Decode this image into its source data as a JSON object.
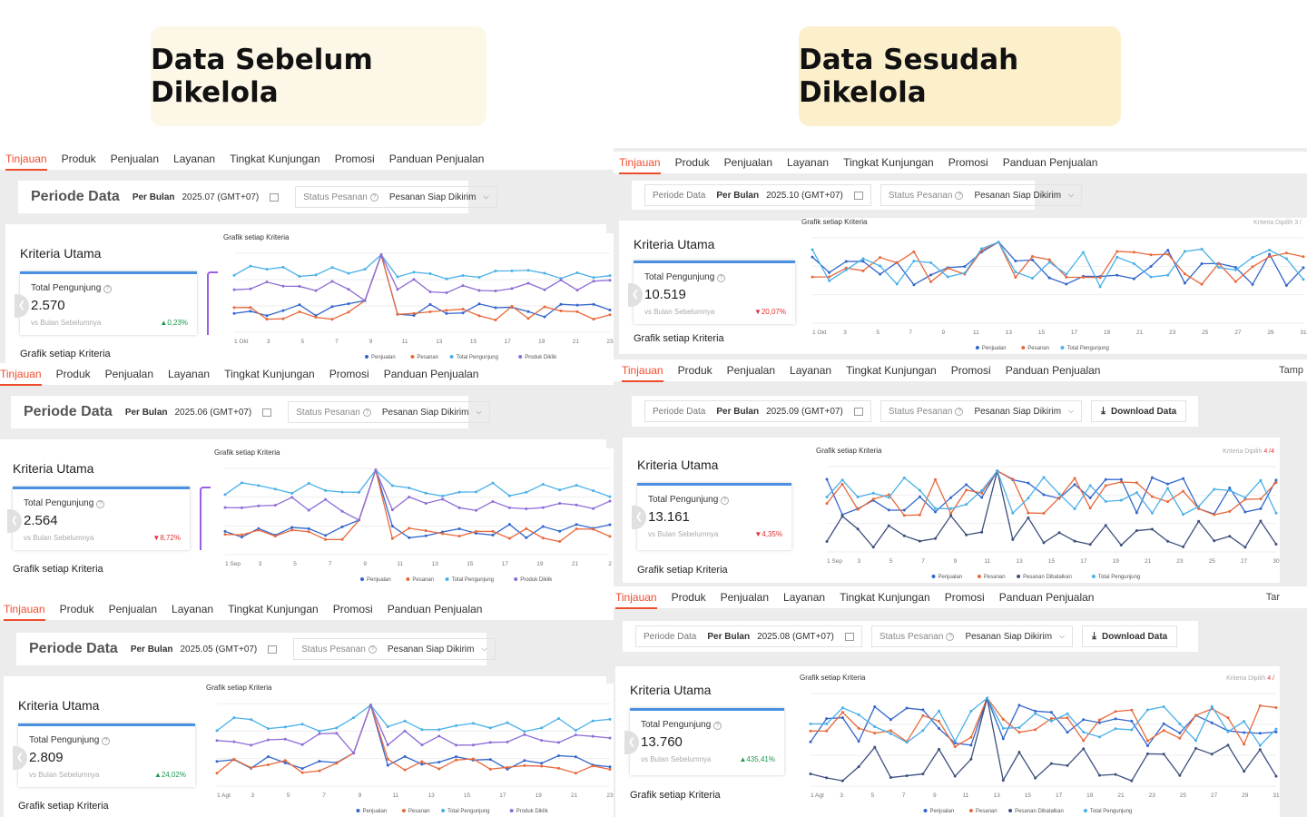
{
  "titles": {
    "before": "Data Sebelum Dikelola",
    "after": "Data Sesudah Dikelola"
  },
  "colors": {
    "before_box": "#fdf7e7",
    "after_box": "#fcf0cc",
    "accent": "#ee4d2d",
    "penjualan": "#3366cc",
    "pesanan": "#e8693c",
    "dibatalkan": "#3d4f7c",
    "pengunjung": "#4ab0e8",
    "dikilk": "#8e6cd6",
    "up": "#1a9850",
    "down": "#e03131"
  },
  "tabs": [
    "Tinjauan",
    "Produk",
    "Penjualan",
    "Layanan",
    "Tingkat Kunjungan",
    "Promosi",
    "Panduan Penjualan"
  ],
  "common": {
    "periode_data": "Periode Data",
    "per_bulan": "Per Bulan",
    "status_pesanan": "Status Pesanan",
    "siap_dikirim": "Pesanan Siap Dikirim",
    "download": "Download Data",
    "kriteria_utama": "Kriteria Utama",
    "total_pengunjung": "Total Pengunjung",
    "vs": "vs Bulan Sebelumnya",
    "grafik": "Grafik setiap Kriteria",
    "tamp": "Tamp",
    "tar": "Tar",
    "kriteria_dipilih_prefix": "Kriteria Dipilih",
    "kd3": "3 /",
    "kd4": "4 /4",
    "kd4b": "4 /"
  },
  "panels": [
    {
      "period": "2025.07 (GMT+07)",
      "visitors": "2.570",
      "change": "0,23%",
      "dir": "up",
      "ticks": [
        "1 Okt",
        "3",
        "5",
        "7",
        "9",
        "11",
        "13",
        "15",
        "17",
        "19",
        "21",
        "23"
      ],
      "legend": [
        "Penjualan",
        "Pesanan",
        "Total Pengunjung",
        "Produk Diklik"
      ]
    },
    {
      "period": "2025.06 (GMT+07)",
      "visitors": "2.564",
      "change": "8,72%",
      "dir": "down",
      "ticks": [
        "1 Sep",
        "3",
        "5",
        "7",
        "9",
        "11",
        "13",
        "15",
        "17",
        "19",
        "21",
        "2"
      ],
      "legend": [
        "Penjualan",
        "Pesanan",
        "Total Pengunjung",
        "Produk Diklik"
      ]
    },
    {
      "period": "2025.05 (GMT+07)",
      "visitors": "2.809",
      "change": "24,02%",
      "dir": "up",
      "ticks": [
        "1 Agt",
        "3",
        "5",
        "7",
        "9",
        "11",
        "13",
        "15",
        "17",
        "19",
        "21",
        "23"
      ],
      "legend": [
        "Penjualan",
        "Pesanan",
        "Total Pengunjung",
        "Produk Diklik"
      ]
    },
    {
      "period": "2025.10 (GMT+07)",
      "visitors": "10.519",
      "change": "20,07%",
      "dir": "down",
      "ticks": [
        "1 Okt",
        "3",
        "5",
        "7",
        "9",
        "11",
        "13",
        "15",
        "17",
        "19",
        "21",
        "23",
        "25",
        "27",
        "29",
        "31"
      ],
      "legend": [
        "Penjualan",
        "Pesanan",
        "Total Pengunjung"
      ]
    },
    {
      "period": "2025.09 (GMT+07)",
      "visitors": "13.161",
      "change": "4,35%",
      "dir": "down",
      "ticks": [
        "1 Sep",
        "3",
        "5",
        "7",
        "9",
        "11",
        "13",
        "15",
        "17",
        "19",
        "21",
        "23",
        "25",
        "27",
        "30"
      ],
      "legend": [
        "Penjualan",
        "Pesanan",
        "Pesanan Dibatalkan",
        "Total Pengunjung"
      ]
    },
    {
      "period": "2025.08 (GMT+07)",
      "visitors": "13.760",
      "change": "435,41%",
      "dir": "up",
      "ticks": [
        "1 Agt",
        "3",
        "5",
        "7",
        "9",
        "11",
        "13",
        "15",
        "17",
        "19",
        "21",
        "23",
        "25",
        "27",
        "29",
        "31"
      ],
      "legend": [
        "Penjualan",
        "Pesanan",
        "Pesanan Dibatalkan",
        "Total Pengunjung"
      ]
    }
  ]
}
